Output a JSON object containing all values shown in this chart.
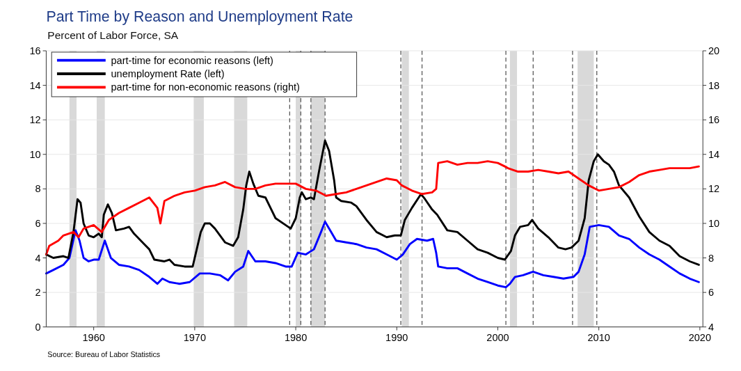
{
  "chart_data": {
    "type": "line",
    "title": "Part Time by Reason and Unemployment Rate",
    "subtitle": "Percent of Labor Force, SA",
    "annotations": [
      "Source: Bureau of Labor Statistics"
    ],
    "xlim": [
      1955.3,
      2020.3
    ],
    "xticks": [
      1960,
      1970,
      1980,
      1990,
      2000,
      2010,
      2020
    ],
    "ylim": [
      0,
      16
    ],
    "yticks": [
      0,
      2,
      4,
      6,
      8,
      10,
      12,
      14,
      16
    ],
    "y2lim": [
      4,
      20
    ],
    "y2ticks": [
      4,
      6,
      8,
      10,
      12,
      14,
      16,
      18,
      20
    ],
    "grid": "y",
    "legend": "top left",
    "line_style": "solid",
    "marker": "none",
    "series": [
      {
        "name": "part-time for economic reasons (left)",
        "color": "#0000ff",
        "x": [
          1955.3,
          1956,
          1957,
          1957.6,
          1958.2,
          1958.6,
          1959,
          1959.5,
          1960,
          1960.5,
          1961.1,
          1961.7,
          1962.5,
          1963.5,
          1964.5,
          1965.5,
          1966.3,
          1966.8,
          1967.5,
          1968.5,
          1969.5,
          1970.5,
          1971.5,
          1972.5,
          1973.3,
          1974,
          1974.8,
          1975.3,
          1976,
          1977,
          1978,
          1979,
          1979.6,
          1980.2,
          1981,
          1981.8,
          1982.5,
          1982.9,
          1983.5,
          1984,
          1985,
          1986,
          1987,
          1988,
          1989,
          1990,
          1990.6,
          1991.3,
          1992,
          1993,
          1993.6,
          1993.9,
          1994.1,
          1995,
          1996,
          1997,
          1998,
          1999,
          2000,
          2000.8,
          2001.2,
          2001.7,
          2002.5,
          2003.5,
          2004.5,
          2005.5,
          2006.5,
          2007.5,
          2008,
          2008.6,
          2009.1,
          2010,
          2011,
          2012,
          2013,
          2014,
          2015,
          2016,
          2017,
          2018,
          2019,
          2019.9
        ],
        "values": [
          3.1,
          3.3,
          3.6,
          4.0,
          5.6,
          5.0,
          4.0,
          3.8,
          3.9,
          3.9,
          5.0,
          4.0,
          3.6,
          3.5,
          3.3,
          2.9,
          2.5,
          2.8,
          2.6,
          2.5,
          2.6,
          3.1,
          3.1,
          3.0,
          2.7,
          3.2,
          3.5,
          4.4,
          3.8,
          3.8,
          3.7,
          3.5,
          3.5,
          4.3,
          4.2,
          4.5,
          5.5,
          6.1,
          5.5,
          5.0,
          4.9,
          4.8,
          4.6,
          4.5,
          4.2,
          3.9,
          4.2,
          4.8,
          5.1,
          5.0,
          5.1,
          4.3,
          3.5,
          3.4,
          3.4,
          3.1,
          2.8,
          2.6,
          2.4,
          2.3,
          2.5,
          2.9,
          3.0,
          3.2,
          3.0,
          2.9,
          2.8,
          2.9,
          3.2,
          4.2,
          5.8,
          5.9,
          5.8,
          5.3,
          5.1,
          4.6,
          4.2,
          3.9,
          3.5,
          3.1,
          2.8,
          2.6
        ]
      },
      {
        "name": "unemployment Rate (left)",
        "color": "#000000",
        "x": [
          1955.3,
          1956,
          1957,
          1957.5,
          1958,
          1958.4,
          1958.7,
          1959,
          1959.5,
          1960,
          1960.5,
          1960.8,
          1961,
          1961.4,
          1961.8,
          1962.2,
          1963,
          1963.5,
          1964,
          1965,
          1965.5,
          1966,
          1967,
          1967.5,
          1968,
          1969,
          1969.8,
          1970.2,
          1970.6,
          1971,
          1971.5,
          1972,
          1973,
          1973.8,
          1974.3,
          1974.8,
          1975.1,
          1975.4,
          1975.8,
          1976.3,
          1977,
          1977.5,
          1978,
          1979,
          1979.5,
          1980,
          1980.4,
          1980.6,
          1981,
          1981.5,
          1981.8,
          1982.3,
          1982.9,
          1983.3,
          1983.8,
          1984,
          1984.5,
          1985.5,
          1986,
          1987,
          1988,
          1989,
          1989.8,
          1990.4,
          1990.8,
          1991.5,
          1992.4,
          1992.8,
          1993.5,
          1994,
          1995,
          1996,
          1997,
          1998,
          1999,
          2000,
          2000.7,
          2001.3,
          2001.7,
          2002.2,
          2003,
          2003.4,
          2004,
          2005,
          2006,
          2006.7,
          2007.3,
          2008,
          2008.6,
          2009,
          2009.5,
          2009.9,
          2010.5,
          2011,
          2011.5,
          2012,
          2013,
          2014,
          2015,
          2016,
          2017,
          2018,
          2019,
          2019.9
        ],
        "values": [
          4.2,
          4.0,
          4.1,
          4.0,
          5.5,
          7.4,
          7.2,
          6.0,
          5.3,
          5.2,
          5.4,
          5.2,
          6.5,
          7.1,
          6.6,
          5.6,
          5.7,
          5.8,
          5.4,
          4.8,
          4.5,
          3.9,
          3.8,
          3.9,
          3.6,
          3.5,
          3.5,
          4.5,
          5.5,
          6.0,
          6.0,
          5.7,
          4.9,
          4.7,
          5.2,
          6.8,
          8.2,
          9.0,
          8.3,
          7.6,
          7.5,
          6.9,
          6.3,
          5.9,
          5.7,
          6.3,
          7.5,
          7.8,
          7.4,
          7.5,
          7.4,
          9.0,
          10.8,
          10.2,
          8.5,
          7.5,
          7.3,
          7.2,
          7.0,
          6.2,
          5.5,
          5.2,
          5.3,
          5.3,
          6.2,
          6.9,
          7.7,
          7.4,
          6.8,
          6.5,
          5.6,
          5.5,
          5.0,
          4.5,
          4.3,
          4.0,
          3.9,
          4.4,
          5.3,
          5.8,
          5.9,
          6.2,
          5.7,
          5.2,
          4.6,
          4.5,
          4.6,
          5.0,
          6.3,
          8.5,
          9.6,
          10.0,
          9.6,
          9.4,
          9.0,
          8.2,
          7.5,
          6.4,
          5.5,
          5.0,
          4.7,
          4.1,
          3.8,
          3.6
        ]
      },
      {
        "name": "part-time for non-economic reasons (right)",
        "color": "#ff0000",
        "axis": "y2",
        "x": [
          1955.3,
          1955.6,
          1956.5,
          1957,
          1958,
          1958.5,
          1959,
          1960,
          1960.8,
          1961.5,
          1962.5,
          1963.5,
          1964.5,
          1965.5,
          1966.3,
          1966.6,
          1967,
          1968,
          1969,
          1970,
          1971,
          1972,
          1973,
          1974,
          1975,
          1976,
          1977,
          1978,
          1979,
          1980,
          1981,
          1982,
          1983,
          1984,
          1985,
          1986,
          1987,
          1988,
          1989,
          1990,
          1990.5,
          1991.5,
          1992.5,
          1993.5,
          1993.9,
          1994.1,
          1995,
          1996,
          1997,
          1998,
          1999,
          2000,
          2000.7,
          2001,
          2002,
          2003,
          2004,
          2005,
          2006,
          2007,
          2008,
          2009,
          2010,
          2011,
          2012,
          2013,
          2014,
          2015,
          2016,
          2017,
          2018,
          2019,
          2019.9
        ],
        "values": [
          8.2,
          8.7,
          9.0,
          9.3,
          9.5,
          9.2,
          9.7,
          9.9,
          9.5,
          10.2,
          10.6,
          10.9,
          11.2,
          11.5,
          10.9,
          10.0,
          11.3,
          11.6,
          11.8,
          11.9,
          12.1,
          12.2,
          12.4,
          12.1,
          12.0,
          12.0,
          12.2,
          12.3,
          12.3,
          12.3,
          12.0,
          11.9,
          11.6,
          11.7,
          11.8,
          12.0,
          12.2,
          12.4,
          12.6,
          12.5,
          12.2,
          11.9,
          11.7,
          11.8,
          12.0,
          13.5,
          13.6,
          13.4,
          13.5,
          13.5,
          13.6,
          13.5,
          13.3,
          13.2,
          13.0,
          13.0,
          13.1,
          13.0,
          12.9,
          13.0,
          12.6,
          12.2,
          11.9,
          12.0,
          12.1,
          12.4,
          12.8,
          13.0,
          13.1,
          13.2,
          13.2,
          13.2,
          13.3
        ]
      }
    ],
    "bands": [
      {
        "axis": "x",
        "from": 1957.6,
        "to": 1958.3,
        "color": "#d9d9d9"
      },
      {
        "axis": "x",
        "from": 1960.3,
        "to": 1961.1,
        "color": "#d9d9d9"
      },
      {
        "axis": "x",
        "from": 1969.9,
        "to": 1970.9,
        "color": "#d9d9d9"
      },
      {
        "axis": "x",
        "from": 1973.9,
        "to": 1975.2,
        "color": "#d9d9d9"
      },
      {
        "axis": "x",
        "from": 1980.0,
        "to": 1980.5,
        "color": "#d9d9d9"
      },
      {
        "axis": "x",
        "from": 1981.5,
        "to": 1982.9,
        "color": "#d9d9d9"
      },
      {
        "axis": "x",
        "from": 1990.5,
        "to": 1991.2,
        "color": "#d9d9d9"
      },
      {
        "axis": "x",
        "from": 2001.2,
        "to": 2001.9,
        "color": "#d9d9d9"
      },
      {
        "axis": "x",
        "from": 2007.9,
        "to": 2009.5,
        "color": "#d9d9d9"
      }
    ],
    "ref_lines": [
      {
        "axis": "x",
        "value": 1979.4,
        "color": "#555555",
        "line_style": "dashed"
      },
      {
        "axis": "x",
        "value": 1980.5,
        "color": "#555555",
        "line_style": "dashed"
      },
      {
        "axis": "x",
        "value": 1981.5,
        "color": "#555555",
        "line_style": "dashed"
      },
      {
        "axis": "x",
        "value": 1982.9,
        "color": "#555555",
        "line_style": "dashed"
      },
      {
        "axis": "x",
        "value": 1990.4,
        "color": "#555555",
        "line_style": "dashed"
      },
      {
        "axis": "x",
        "value": 1992.5,
        "color": "#555555",
        "line_style": "dashed"
      },
      {
        "axis": "x",
        "value": 2000.8,
        "color": "#555555",
        "line_style": "dashed"
      },
      {
        "axis": "x",
        "value": 2003.5,
        "color": "#555555",
        "line_style": "dashed"
      },
      {
        "axis": "x",
        "value": 2007.4,
        "color": "#555555",
        "line_style": "dashed"
      },
      {
        "axis": "x",
        "value": 2009.8,
        "color": "#555555",
        "line_style": "dashed"
      }
    ]
  }
}
